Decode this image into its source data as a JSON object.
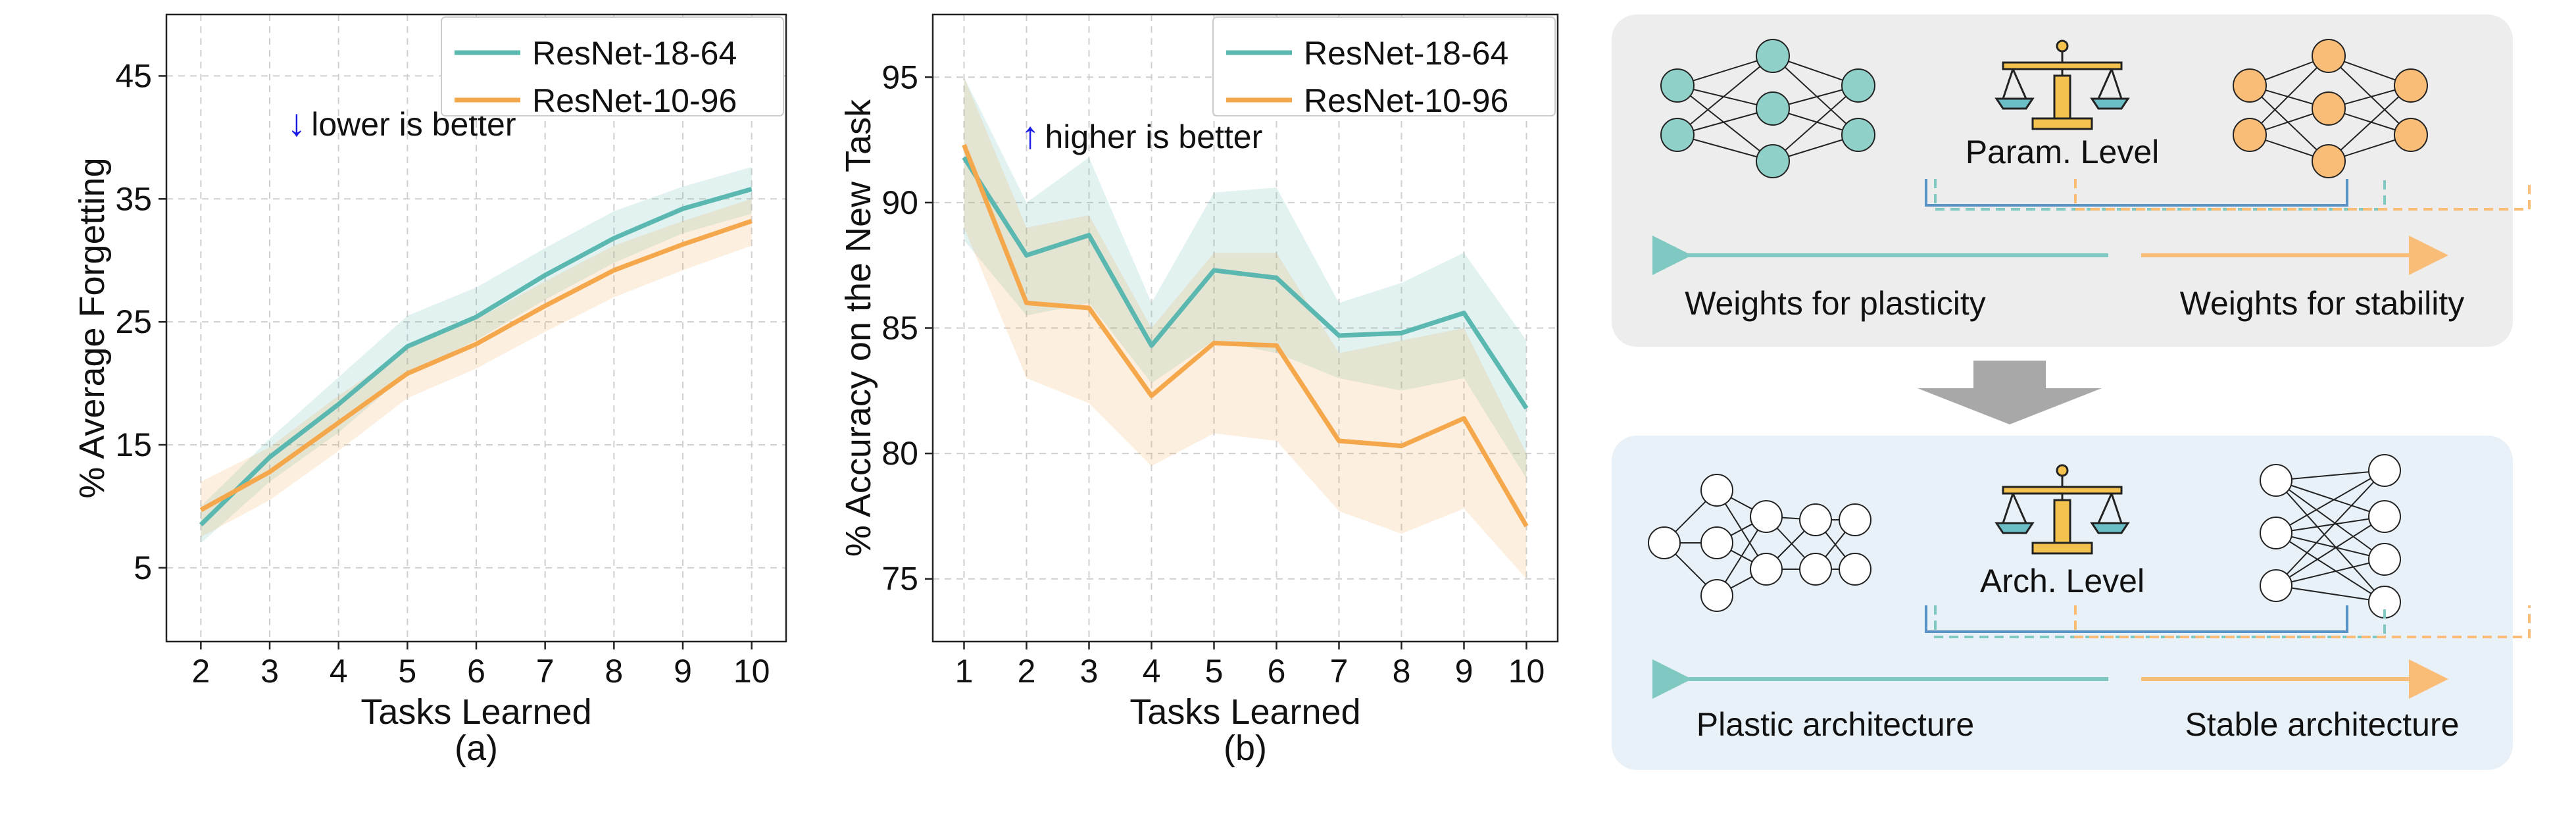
{
  "chart_data": [
    {
      "type": "line",
      "id": "a",
      "caption": "(a)",
      "xlabel": "Tasks Learned",
      "ylabel": "% Average Forgetting",
      "x": [
        2,
        3,
        4,
        5,
        6,
        7,
        8,
        9,
        10
      ],
      "xlim": [
        1.5,
        10.5
      ],
      "ylim": [
        -1,
        50
      ],
      "yticks": [
        5,
        15,
        25,
        35,
        45
      ],
      "grid": true,
      "legend": "top-right",
      "annotation": {
        "arrow": "↓",
        "text": "lower is better",
        "x": 3.7,
        "y": 41
      },
      "series": [
        {
          "name": "ResNet-18-64",
          "color": "#5ab8b0",
          "values": [
            8.5,
            14.0,
            18.3,
            23.0,
            25.4,
            28.8,
            31.8,
            34.2,
            35.8
          ],
          "lower": [
            7.0,
            12.0,
            16.0,
            20.8,
            23.5,
            26.8,
            29.8,
            32.2,
            33.8
          ],
          "upper": [
            10.0,
            15.5,
            20.5,
            25.5,
            27.8,
            31.0,
            34.0,
            36.0,
            37.6
          ]
        },
        {
          "name": "ResNet-10-96",
          "color": "#f5a74b",
          "values": [
            9.7,
            12.8,
            16.8,
            20.8,
            23.2,
            26.3,
            29.2,
            31.3,
            33.2
          ],
          "lower": [
            7.5,
            10.5,
            14.5,
            18.8,
            21.2,
            24.2,
            27.0,
            29.2,
            31.2
          ],
          "upper": [
            12.0,
            14.8,
            19.0,
            22.8,
            25.2,
            28.3,
            31.2,
            33.2,
            35.0
          ]
        }
      ]
    },
    {
      "type": "line",
      "id": "b",
      "caption": "(b)",
      "xlabel": "Tasks Learned",
      "ylabel": "% Accuracy on the New Task",
      "x": [
        1,
        2,
        3,
        4,
        5,
        6,
        7,
        8,
        9,
        10
      ],
      "xlim": [
        0.5,
        10.5
      ],
      "ylim": [
        72.5,
        97.5
      ],
      "yticks": [
        75,
        80,
        85,
        90,
        95
      ],
      "grid": true,
      "legend": "top-right",
      "annotation": {
        "arrow": "↑",
        "text": "higher is better",
        "x": 2.4,
        "y": 92.6
      },
      "series": [
        {
          "name": "ResNet-18-64",
          "color": "#5ab8b0",
          "values": [
            91.8,
            87.9,
            88.7,
            84.3,
            87.3,
            87.0,
            84.7,
            84.8,
            85.6,
            81.8
          ],
          "lower": [
            88.5,
            85.5,
            86.0,
            82.8,
            84.5,
            84.0,
            83.0,
            82.5,
            83.0,
            79.0
          ],
          "upper": [
            95.0,
            90.0,
            91.8,
            86.0,
            90.4,
            90.6,
            86.0,
            86.8,
            88.0,
            84.5
          ]
        },
        {
          "name": "ResNet-10-96",
          "color": "#f5a74b",
          "values": [
            92.3,
            86.0,
            85.8,
            82.3,
            84.4,
            84.3,
            80.5,
            80.3,
            81.4,
            77.1
          ],
          "lower": [
            89.0,
            83.0,
            82.0,
            79.5,
            80.8,
            80.5,
            77.7,
            76.8,
            77.8,
            75.0
          ],
          "upper": [
            95.0,
            89.0,
            89.5,
            85.0,
            88.0,
            88.0,
            84.0,
            84.5,
            85.0,
            80.0
          ]
        }
      ]
    }
  ],
  "diagram": {
    "top_panel": {
      "level_label": "Param. Level",
      "left_label": "Weights for plasticity",
      "right_label": "Weights for stability",
      "left_color": "#7fc9c2",
      "right_color": "#f9bd78",
      "bg": "#ededed"
    },
    "bottom_panel": {
      "level_label": "Arch. Level",
      "left_label": "Plastic architecture",
      "right_label": "Stable architecture",
      "bg": "#e8f1f8"
    },
    "colors": {
      "teal_node": "#8fd0c9",
      "orange_node": "#f9bd78",
      "bracket_blue": "#5b93c7",
      "arrow_gray": "#a8a8a8"
    }
  }
}
